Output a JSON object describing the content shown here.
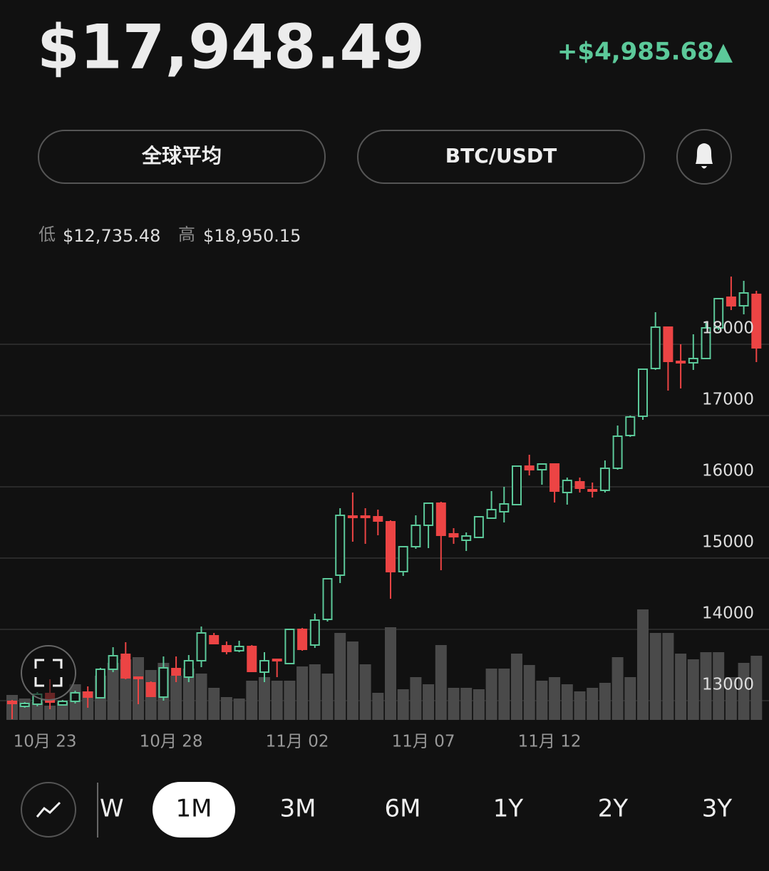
{
  "header": {
    "price": "$17,948.49",
    "change": "+$4,985.68▲"
  },
  "buttons": [
    "全球平均",
    "BTC/USDT"
  ],
  "range": {
    "low_label": "低",
    "low": "$12,735.48",
    "high_label": "高",
    "high": "$18,950.15"
  },
  "periods": [
    "W",
    "1M",
    "3M",
    "6M",
    "1Y",
    "2Y",
    "3Y"
  ],
  "selected_period": 1,
  "chart_data": {
    "type": "candlestick",
    "categories": [
      null,
      null,
      null,
      "10月 23",
      null,
      null,
      null,
      null,
      null,
      null,
      null,
      null,
      null,
      "10月 28",
      null,
      null,
      null,
      null,
      null,
      null,
      null,
      null,
      null,
      "11月 02",
      null,
      null,
      null,
      null,
      null,
      null,
      null,
      null,
      null,
      "11月 07",
      null,
      null,
      null,
      null,
      null,
      null,
      null,
      null,
      null,
      "11月 12",
      null,
      null,
      null,
      null,
      null,
      null,
      null,
      null,
      null,
      null,
      null,
      null,
      null,
      null,
      null,
      null
    ],
    "open": [
      12990,
      12920,
      12950,
      13100,
      12940,
      12990,
      13120,
      13040,
      13440,
      13650,
      13330,
      13250,
      13050,
      13450,
      13330,
      13560,
      13910,
      13770,
      13700,
      13760,
      13400,
      13580,
      13520,
      14000,
      13780,
      14140,
      14760,
      15590,
      15590,
      15580,
      15510,
      14810,
      15160,
      15460,
      15770,
      15340,
      15250,
      15290,
      15560,
      15650,
      15750,
      16290,
      16240,
      16320,
      15920,
      16070,
      15960,
      15950,
      16260,
      16720,
      16990,
      17660,
      18240,
      17760,
      17740,
      17800,
      18230,
      18660,
      18540,
      18700
    ],
    "high": [
      13010,
      12980,
      13120,
      13300,
      13010,
      13140,
      13200,
      13460,
      13750,
      13820,
      13330,
      13270,
      13620,
      13620,
      13640,
      14040,
      13950,
      13830,
      13840,
      13780,
      13680,
      13580,
      14010,
      14020,
      14220,
      14720,
      15700,
      15920,
      15700,
      15680,
      15530,
      15170,
      15600,
      15780,
      15790,
      15420,
      15360,
      15580,
      15940,
      16000,
      16300,
      16450,
      16330,
      16330,
      16130,
      16130,
      16060,
      16370,
      16860,
      17000,
      17660,
      18450,
      18250,
      18000,
      18140,
      18300,
      18650,
      18950,
      18890,
      18750
    ],
    "low": [
      12740,
      12900,
      12920,
      12880,
      12930,
      12960,
      12900,
      13030,
      13400,
      13300,
      12950,
      13050,
      13000,
      13260,
      13260,
      13470,
      13790,
      13650,
      13680,
      13400,
      13260,
      13330,
      13510,
      13700,
      13740,
      14110,
      14650,
      15230,
      15200,
      15320,
      14430,
      14750,
      15130,
      15140,
      14830,
      15200,
      15100,
      15290,
      15550,
      15500,
      15740,
      16160,
      16030,
      15780,
      15750,
      15920,
      15850,
      15920,
      16240,
      16700,
      16940,
      17640,
      17350,
      17380,
      17640,
      17790,
      18200,
      18480,
      18420,
      17750
    ],
    "close": [
      12960,
      12960,
      13090,
      12980,
      12990,
      13110,
      13050,
      13440,
      13630,
      13320,
      13310,
      13060,
      13460,
      13360,
      13560,
      13950,
      13800,
      13690,
      13760,
      13410,
      13560,
      13560,
      14000,
      13720,
      14130,
      14710,
      15600,
      15580,
      15570,
      15520,
      14810,
      15160,
      15460,
      15770,
      15320,
      15300,
      15310,
      15580,
      15680,
      15760,
      16290,
      16240,
      16320,
      15940,
      16090,
      15980,
      15940,
      16260,
      16710,
      16980,
      17650,
      18240,
      17760,
      17740,
      17800,
      18230,
      18640,
      18540,
      18720,
      17950
    ],
    "volume": [
      35,
      30,
      25,
      20,
      25,
      50,
      40,
      62,
      80,
      85,
      88,
      70,
      80,
      62,
      72,
      65,
      45,
      32,
      30,
      55,
      60,
      55,
      55,
      75,
      78,
      65,
      122,
      110,
      78,
      38,
      130,
      43,
      60,
      50,
      105,
      45,
      45,
      43,
      72,
      72,
      93,
      77,
      55,
      60,
      50,
      40,
      45,
      52,
      88,
      60,
      155,
      122,
      122,
      93,
      85,
      95,
      95,
      60,
      80,
      90
    ],
    "ylim": [
      12730,
      19030
    ],
    "yticks": [
      13000,
      14000,
      15000,
      16000,
      17000,
      18000
    ],
    "vlim": [
      0,
      160
    ],
    "grid": true,
    "up_color": "#5cc99a",
    "down_color": "#ec4444",
    "volume_color": "#4a4a4a"
  }
}
